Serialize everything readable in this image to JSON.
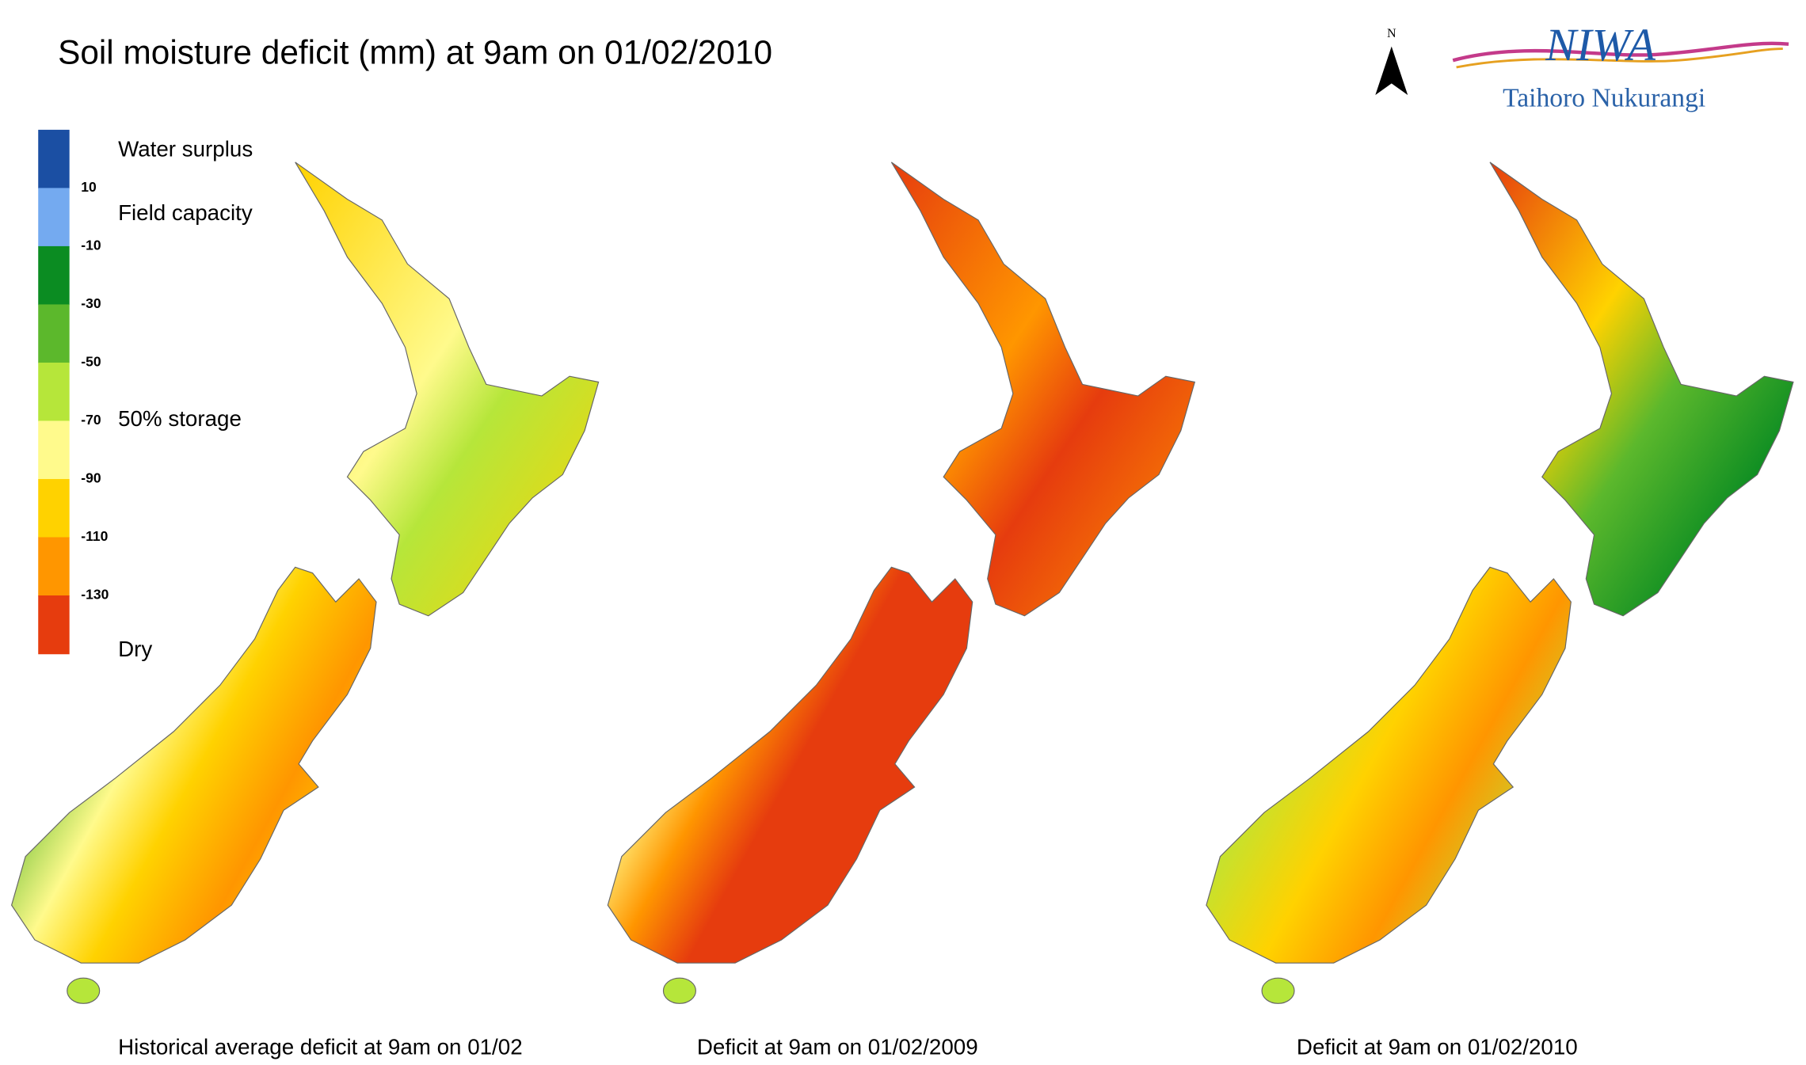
{
  "header": {
    "title": "Soil moisture deficit (mm) at  9am on 01/02/2010"
  },
  "legend": {
    "colors": [
      "#1b4fa3",
      "#74aaf0",
      "#0b8c22",
      "#5cb82c",
      "#b6e63a",
      "#fffa8c",
      "#ffd200",
      "#ff9600",
      "#e63c0e"
    ],
    "ticks": [
      "10",
      "-10",
      "-30",
      "-50",
      "-70",
      "-90",
      "-110",
      "-130"
    ],
    "labels": [
      "Water surplus",
      "Field capacity",
      "50% storage",
      "Dry"
    ]
  },
  "maps": [
    {
      "caption": "Historical average deficit at 9am on 01/02"
    },
    {
      "caption": "Deficit at  9am on 01/02/2009"
    },
    {
      "caption": "Deficit at  9am on 01/02/2010"
    }
  ],
  "logo": {
    "north": "N",
    "name": "NIWA",
    "subtitle": "Taihoro Nukurangi"
  }
}
